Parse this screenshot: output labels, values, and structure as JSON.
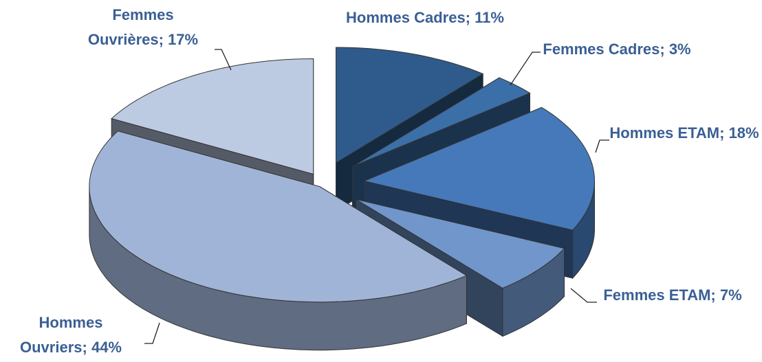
{
  "chart_data": {
    "type": "pie3d",
    "categories": [
      "Hommes Cadres;",
      "Femmes Cadres;",
      "Hommes ETAM;",
      "Femmes ETAM;",
      "Hommes Ouvriers;",
      "Femmes Ouvrières;"
    ],
    "values": [
      11,
      3,
      18,
      7,
      44,
      17
    ],
    "value_labels": [
      "11%",
      "3%",
      "18%",
      "7%",
      "44%",
      "17%"
    ],
    "colors": [
      "#2f5b8c",
      "#3b6fa8",
      "#4579ba",
      "#7096cc",
      "#a0b4d7",
      "#bdcbe2"
    ]
  }
}
